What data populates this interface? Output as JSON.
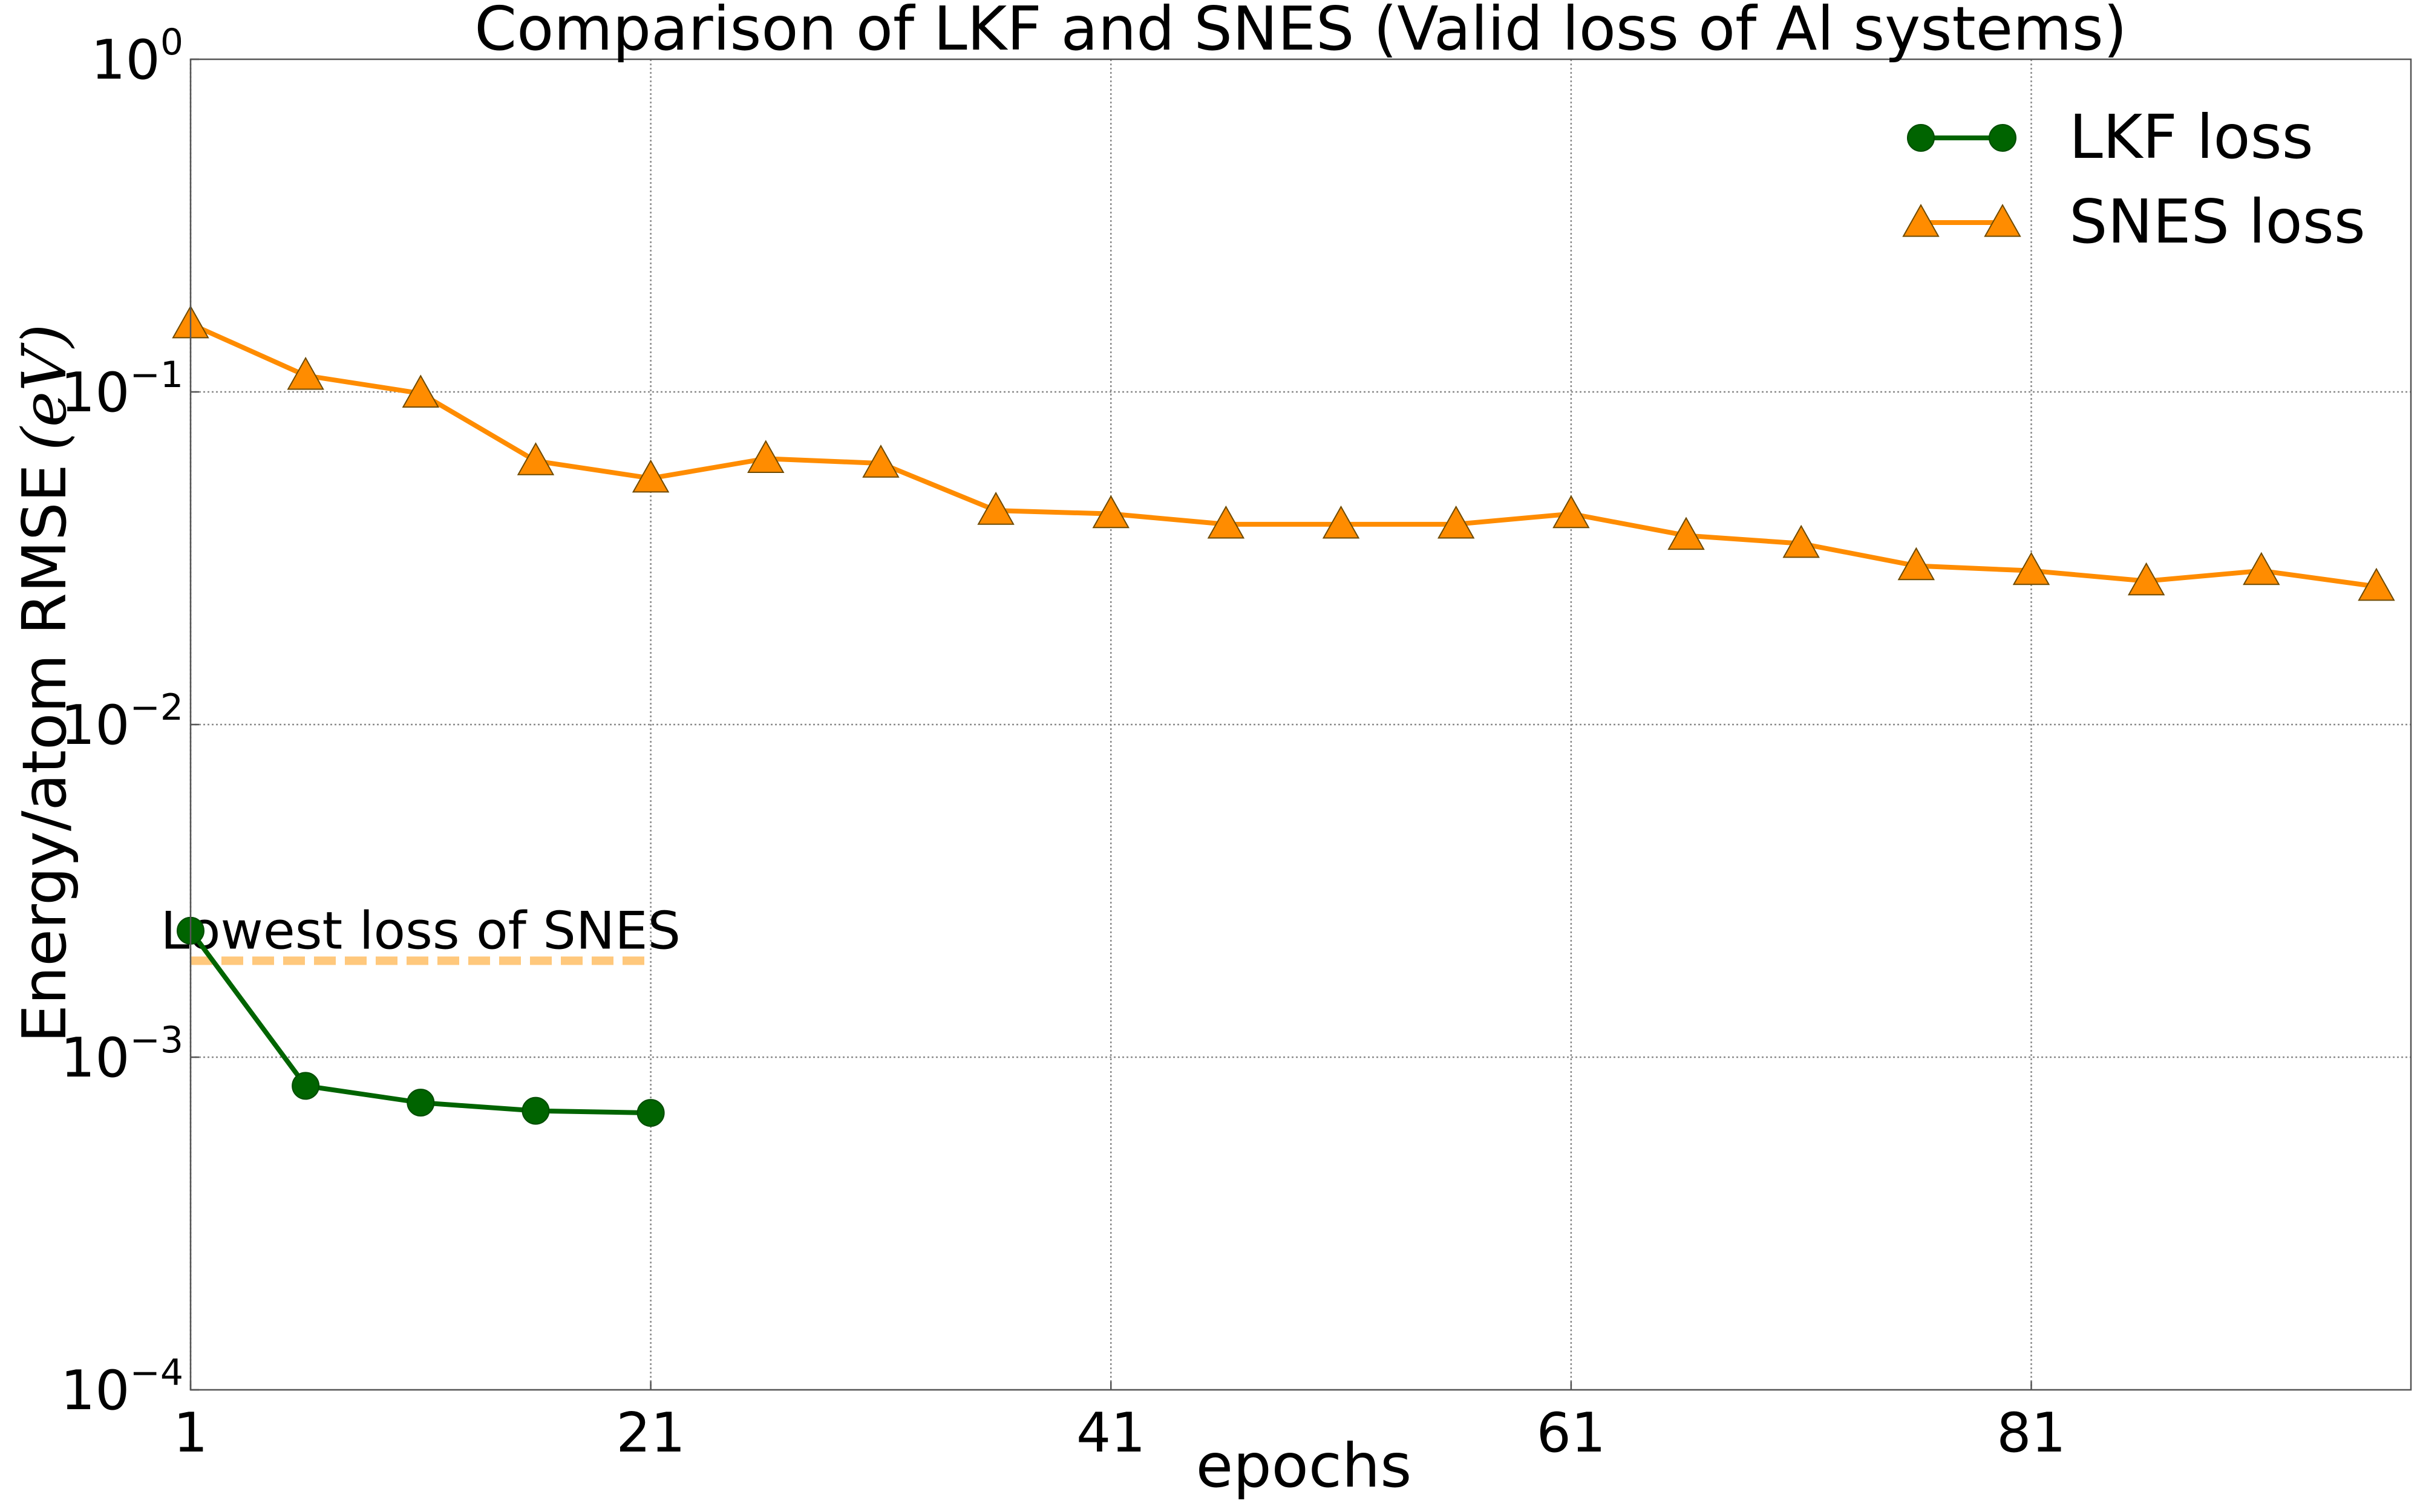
{
  "chart_data": {
    "type": "line",
    "title": "Comparison of LKF and SNES (Valid loss of Al systems)",
    "xlabel": "epochs",
    "ylabel": "Energy/atom RMSE",
    "ylabel_unit": "(eV)",
    "yscale": "log",
    "xlim": [
      1,
      97.5
    ],
    "ylim": [
      0.0001,
      1
    ],
    "x_ticks": [
      {
        "value": 1,
        "label": "1"
      },
      {
        "value": 21,
        "label": "21"
      },
      {
        "value": 41,
        "label": "41"
      },
      {
        "value": 61,
        "label": "61"
      },
      {
        "value": 81,
        "label": "81"
      }
    ],
    "y_ticks": [
      {
        "value": 0.0001,
        "base": "10",
        "exp": "−4"
      },
      {
        "value": 0.001,
        "base": "10",
        "exp": "−3"
      },
      {
        "value": 0.01,
        "base": "10",
        "exp": "−2"
      },
      {
        "value": 0.1,
        "base": "10",
        "exp": "−1"
      },
      {
        "value": 1,
        "base": "10",
        "exp": "0"
      }
    ],
    "grid": true,
    "legend_position": "top-right",
    "series": [
      {
        "name": "LKF loss",
        "color": "#006400",
        "marker": "circle",
        "x": [
          1,
          6,
          11,
          16,
          21
        ],
        "y": [
          0.0024,
          0.00082,
          0.00073,
          0.00069,
          0.00068
        ]
      },
      {
        "name": "SNES loss",
        "color": "#ff8c00",
        "marker": "triangle",
        "x": [
          1,
          6,
          11,
          16,
          21,
          26,
          31,
          36,
          41,
          46,
          51,
          56,
          61,
          66,
          71,
          76,
          81,
          86,
          91,
          96
        ],
        "y": [
          0.16,
          0.112,
          0.099,
          0.062,
          0.055,
          0.063,
          0.061,
          0.044,
          0.043,
          0.04,
          0.04,
          0.04,
          0.043,
          0.037,
          0.035,
          0.03,
          0.029,
          0.027,
          0.029,
          0.026
        ]
      }
    ],
    "reference_line": {
      "label": "Lowest loss of SNES",
      "y": 0.00195,
      "x_start": 1,
      "x_end": 21,
      "color": "#ffc87c"
    }
  }
}
